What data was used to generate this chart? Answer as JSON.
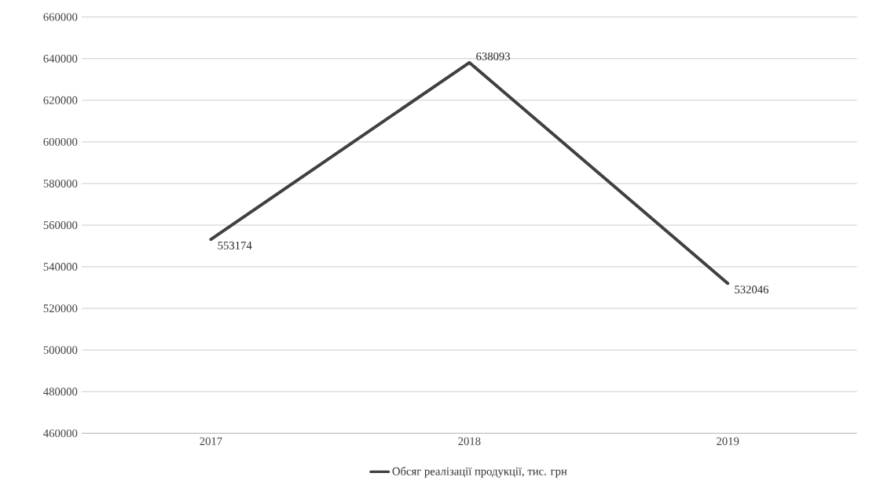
{
  "chart_data": {
    "type": "line",
    "categories": [
      "2017",
      "2018",
      "2019"
    ],
    "series": [
      {
        "name": "Обсяг реалізації продукції, тис. грн",
        "color": "#404040",
        "values": [
          553174,
          638093,
          532046
        ]
      }
    ],
    "ylim": [
      460000,
      660000
    ],
    "yticks": [
      460000,
      480000,
      500000,
      520000,
      540000,
      560000,
      580000,
      600000,
      620000,
      640000,
      660000
    ],
    "grid": "y",
    "legend": "bottom",
    "data_labels": true,
    "marker": "none",
    "line_style": "solid"
  }
}
